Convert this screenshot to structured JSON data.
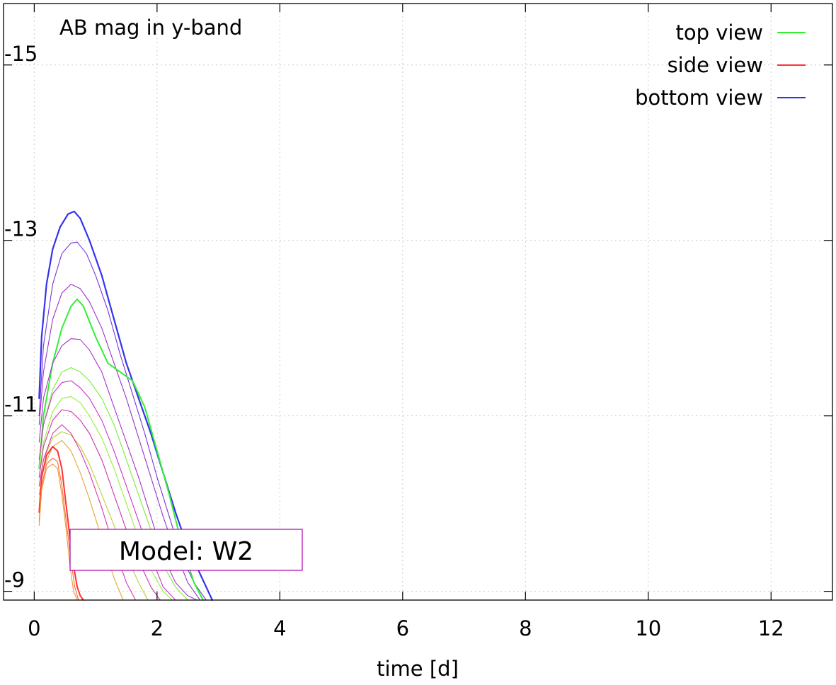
{
  "chart_data": {
    "type": "line",
    "title": "AB mag in y-band",
    "xlabel": "time [d]",
    "ylabel": "",
    "xlim": [
      -0.5,
      13.0
    ],
    "ylim": [
      -8.9,
      -15.7
    ],
    "y_inverted": true,
    "x_ticks": [
      "0",
      "2",
      "4",
      "6",
      "8",
      "10",
      "12"
    ],
    "x_tick_values": [
      0,
      2,
      4,
      6,
      8,
      10,
      12
    ],
    "y_ticks": [
      "-15",
      "-13",
      "-11",
      "-9"
    ],
    "y_tick_values": [
      -15,
      -13,
      -11,
      -9
    ],
    "grid": true,
    "legend_position": "top-right",
    "annotation": "Model: W2",
    "legend": [
      {
        "name": "top view",
        "color": "#33ee33"
      },
      {
        "name": "side view",
        "color": "#ff3333"
      },
      {
        "name": "bottom view",
        "color": "#3333ee"
      }
    ],
    "series": [
      {
        "name": "bottom view",
        "color": "#3333ee",
        "width": 2.2,
        "x": [
          0.08,
          0.12,
          0.2,
          0.3,
          0.42,
          0.55,
          0.65,
          0.75,
          0.9,
          1.1,
          1.3,
          1.5,
          1.7,
          1.9,
          2.1,
          2.3,
          2.5,
          2.7,
          2.9
        ],
        "y": [
          -11.2,
          -11.9,
          -12.5,
          -12.9,
          -13.15,
          -13.3,
          -13.33,
          -13.25,
          -13.0,
          -12.6,
          -12.1,
          -11.6,
          -11.2,
          -10.8,
          -10.35,
          -9.9,
          -9.5,
          -9.2,
          -8.9
        ]
      },
      {
        "name": "",
        "color": "#7733dd",
        "width": 1.1,
        "x": [
          0.08,
          0.15,
          0.3,
          0.45,
          0.6,
          0.7,
          0.85,
          1.0,
          1.2,
          1.4,
          1.6,
          1.8,
          2.0,
          2.2,
          2.4,
          2.6,
          2.8
        ],
        "y": [
          -11.0,
          -11.8,
          -12.5,
          -12.85,
          -12.97,
          -12.98,
          -12.85,
          -12.6,
          -12.2,
          -11.7,
          -11.25,
          -10.8,
          -10.3,
          -9.85,
          -9.4,
          -9.1,
          -8.9
        ]
      },
      {
        "name": "",
        "color": "#9933cc",
        "width": 1.1,
        "x": [
          0.08,
          0.15,
          0.3,
          0.45,
          0.6,
          0.75,
          0.9,
          1.1,
          1.3,
          1.5,
          1.7,
          1.9,
          2.1,
          2.3,
          2.5,
          2.7
        ],
        "y": [
          -10.9,
          -11.5,
          -12.1,
          -12.4,
          -12.5,
          -12.45,
          -12.3,
          -12.0,
          -11.6,
          -11.2,
          -10.75,
          -10.3,
          -9.85,
          -9.45,
          -9.1,
          -8.9
        ]
      },
      {
        "name": "top view",
        "color": "#33ee33",
        "width": 2.0,
        "x": [
          0.08,
          0.15,
          0.3,
          0.45,
          0.6,
          0.7,
          0.8,
          1.0,
          1.2,
          1.4,
          1.6,
          1.8,
          2.0,
          2.2,
          2.4,
          2.6,
          2.75
        ],
        "y": [
          -10.4,
          -11.0,
          -11.6,
          -12.0,
          -12.25,
          -12.33,
          -12.25,
          -11.9,
          -11.6,
          -11.5,
          -11.4,
          -11.1,
          -10.6,
          -10.1,
          -9.55,
          -9.1,
          -8.9
        ]
      },
      {
        "name": "",
        "color": "#aa33cc",
        "width": 1.1,
        "x": [
          0.08,
          0.15,
          0.3,
          0.45,
          0.6,
          0.75,
          0.9,
          1.1,
          1.3,
          1.5,
          1.7,
          1.9,
          2.1,
          2.3,
          2.5,
          2.65
        ],
        "y": [
          -10.7,
          -11.2,
          -11.6,
          -11.8,
          -11.88,
          -11.87,
          -11.75,
          -11.5,
          -11.1,
          -10.7,
          -10.3,
          -9.85,
          -9.4,
          -9.1,
          -8.95,
          -8.9
        ]
      },
      {
        "name": "",
        "color": "#77ee33",
        "width": 1.1,
        "x": [
          0.08,
          0.15,
          0.3,
          0.45,
          0.6,
          0.75,
          0.9,
          1.1,
          1.3,
          1.5,
          1.7,
          1.9,
          2.1,
          2.3,
          2.5
        ],
        "y": [
          -10.4,
          -10.9,
          -11.3,
          -11.5,
          -11.55,
          -11.5,
          -11.4,
          -11.2,
          -10.9,
          -10.5,
          -10.1,
          -9.7,
          -9.3,
          -9.05,
          -8.9
        ]
      },
      {
        "name": "",
        "color": "#cc33cc",
        "width": 1.1,
        "x": [
          0.08,
          0.15,
          0.3,
          0.45,
          0.6,
          0.75,
          0.9,
          1.1,
          1.3,
          1.5,
          1.7,
          1.9,
          2.1,
          2.3
        ],
        "y": [
          -10.5,
          -10.9,
          -11.25,
          -11.38,
          -11.4,
          -11.32,
          -11.2,
          -10.95,
          -10.6,
          -10.2,
          -9.8,
          -9.4,
          -9.05,
          -8.9
        ]
      },
      {
        "name": "",
        "color": "#99ee33",
        "width": 1.1,
        "x": [
          0.08,
          0.15,
          0.3,
          0.45,
          0.6,
          0.75,
          0.9,
          1.1,
          1.3,
          1.5,
          1.7,
          1.9,
          2.1,
          2.25
        ],
        "y": [
          -10.3,
          -10.7,
          -11.05,
          -11.2,
          -11.22,
          -11.15,
          -11.0,
          -10.75,
          -10.4,
          -10.0,
          -9.6,
          -9.25,
          -9.0,
          -8.9
        ]
      },
      {
        "name": "",
        "color": "#cc33aa",
        "width": 1.1,
        "x": [
          0.08,
          0.15,
          0.3,
          0.45,
          0.6,
          0.75,
          0.9,
          1.1,
          1.3,
          1.5,
          1.7,
          1.9,
          2.05
        ],
        "y": [
          -10.3,
          -10.65,
          -10.95,
          -11.07,
          -11.05,
          -10.95,
          -10.8,
          -10.5,
          -10.1,
          -9.7,
          -9.35,
          -9.05,
          -8.9
        ]
      },
      {
        "name": "",
        "color": "#bbcc33",
        "width": 1.1,
        "x": [
          0.08,
          0.15,
          0.3,
          0.45,
          0.6,
          0.75,
          0.9,
          1.1,
          1.3,
          1.5,
          1.7,
          1.85
        ],
        "y": [
          -10.2,
          -10.5,
          -10.75,
          -10.82,
          -10.78,
          -10.65,
          -10.45,
          -10.1,
          -9.75,
          -9.4,
          -9.1,
          -8.9
        ]
      },
      {
        "name": "",
        "color": "#dd33aa",
        "width": 1.1,
        "x": [
          0.08,
          0.15,
          0.3,
          0.45,
          0.6,
          0.75,
          0.9,
          1.1,
          1.3,
          1.5,
          1.65
        ],
        "y": [
          -10.2,
          -10.5,
          -10.8,
          -10.9,
          -10.8,
          -10.6,
          -10.35,
          -9.95,
          -9.5,
          -9.1,
          -8.9
        ]
      },
      {
        "name": "",
        "color": "#ddaa33",
        "width": 1.1,
        "x": [
          0.08,
          0.15,
          0.3,
          0.45,
          0.6,
          0.75,
          0.9,
          1.1,
          1.3,
          1.45
        ],
        "y": [
          -10.1,
          -10.4,
          -10.65,
          -10.72,
          -10.6,
          -10.35,
          -10.05,
          -9.6,
          -9.15,
          -8.9
        ]
      },
      {
        "name": "side view",
        "color": "#ff3333",
        "width": 2.0,
        "x": [
          0.08,
          0.12,
          0.2,
          0.3,
          0.38,
          0.45,
          0.5,
          0.55,
          0.6,
          0.65,
          0.7,
          0.75,
          0.8
        ],
        "y": [
          -9.9,
          -10.3,
          -10.55,
          -10.65,
          -10.6,
          -10.4,
          -10.1,
          -9.8,
          -9.5,
          -9.25,
          -9.05,
          -8.95,
          -8.9
        ]
      },
      {
        "name": "",
        "color": "#ff6633",
        "width": 1.1,
        "x": [
          0.08,
          0.12,
          0.2,
          0.3,
          0.38,
          0.45,
          0.52,
          0.6,
          0.66,
          0.72
        ],
        "y": [
          -9.8,
          -10.2,
          -10.45,
          -10.52,
          -10.48,
          -10.2,
          -9.8,
          -9.35,
          -9.05,
          -8.9
        ]
      },
      {
        "name": "",
        "color": "#ee9933",
        "width": 1.1,
        "x": [
          0.08,
          0.12,
          0.2,
          0.3,
          0.38,
          0.45,
          0.52,
          0.58,
          0.64,
          0.7
        ],
        "y": [
          -9.75,
          -10.15,
          -10.4,
          -10.45,
          -10.4,
          -10.1,
          -9.7,
          -9.3,
          -9.0,
          -8.9
        ]
      }
    ]
  }
}
